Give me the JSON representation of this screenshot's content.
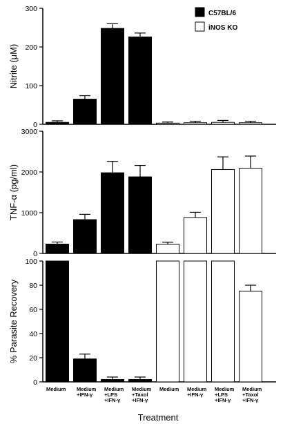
{
  "figure": {
    "xlabel": "Treatment",
    "categories": [
      [
        "Medium"
      ],
      [
        "Medium",
        "+IFN-γ"
      ],
      [
        "Medium",
        "+LPS",
        "+IFN-γ"
      ],
      [
        "Medium",
        "+Taxol",
        "+IFN-γ"
      ],
      [
        "Medium"
      ],
      [
        "Medium",
        "+IFN-γ"
      ],
      [
        "Medium",
        "+LPS",
        "+IFN-γ"
      ],
      [
        "Medium",
        "+Taxol",
        "+IFN-γ"
      ]
    ],
    "legend": [
      {
        "name": "C57BL/6",
        "fill": "#000000"
      },
      {
        "name": "iNOS KO",
        "fill": "#ffffff"
      }
    ],
    "colors": {
      "c57": "#000000",
      "inos": "#ffffff",
      "axis": "#000000"
    }
  },
  "chart_data": [
    {
      "type": "bar",
      "ylabel": "Nitrite (μM)",
      "ylim": [
        0,
        300
      ],
      "yticks": [
        0,
        100,
        200,
        300
      ],
      "series": [
        {
          "name": "C57BL/6",
          "indices": [
            0,
            1,
            2,
            3
          ],
          "values": [
            5,
            65,
            248,
            226
          ],
          "errors": [
            4,
            9,
            12,
            10
          ]
        },
        {
          "name": "iNOS KO",
          "indices": [
            4,
            5,
            6,
            7
          ],
          "values": [
            3,
            4,
            5,
            4
          ],
          "errors": [
            3,
            4,
            5,
            4
          ]
        }
      ]
    },
    {
      "type": "bar",
      "ylabel": "TNF-α (pg/ml)",
      "ylim": [
        0,
        3000
      ],
      "yticks": [
        0,
        1000,
        2000,
        3000
      ],
      "series": [
        {
          "name": "C57BL/6",
          "indices": [
            0,
            1,
            2,
            3
          ],
          "values": [
            230,
            830,
            1980,
            1880
          ],
          "errors": [
            50,
            130,
            280,
            280
          ]
        },
        {
          "name": "iNOS KO",
          "indices": [
            4,
            5,
            6,
            7
          ],
          "values": [
            225,
            880,
            2060,
            2090
          ],
          "errors": [
            50,
            130,
            310,
            300
          ]
        }
      ]
    },
    {
      "type": "bar",
      "ylabel": "% Parasite Recovery",
      "ylim": [
        0,
        100
      ],
      "yticks": [
        0,
        20,
        40,
        60,
        80,
        100
      ],
      "series": [
        {
          "name": "C57BL/6",
          "indices": [
            0,
            1,
            2,
            3
          ],
          "values": [
            100,
            19,
            2,
            2
          ],
          "errors": [
            0,
            4,
            2,
            2
          ]
        },
        {
          "name": "iNOS KO",
          "indices": [
            4,
            5,
            6,
            7
          ],
          "values": [
            100,
            100,
            100,
            75
          ],
          "errors": [
            0,
            0,
            0,
            5
          ]
        }
      ]
    }
  ]
}
